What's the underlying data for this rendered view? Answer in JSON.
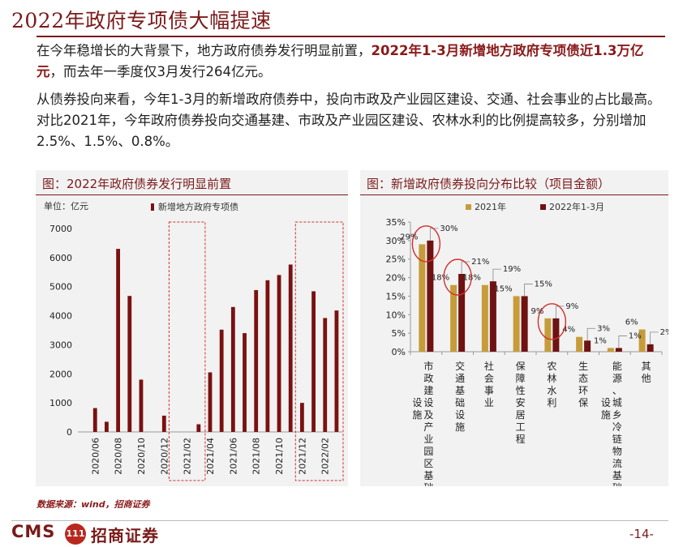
{
  "title": "2022年政府专项债大幅提速",
  "para1": {
    "pre": "在今年稳增长的大背景下，地方政府债券发行明显前置，",
    "bold": "2022年1-3月新增地方政府专项债近1.3万亿元",
    "post": "，而去年一季度仅3月发行264亿元。"
  },
  "para2": "从债券投向来看，今年1-3月的新增政府债券中，投向市政及产业园区建设、交通、社会事业的占比最高。对比2021年，今年政府债券投向交通基建、市政及产业园区建设、农林水利的比例提高较多，分别增加2.5%、1.5%、0.8%。",
  "colors": {
    "brand": "#7b1a1a",
    "bar_left": "#7a1111",
    "series_2021": "#c69c3a",
    "series_2022": "#6e1212",
    "highlight": "#d32f2f"
  },
  "chart_data": [
    {
      "type": "bar",
      "title": "图：2022年政府债券发行明显前置",
      "unit_label": "单位：亿元",
      "legend": "新增地方政府专项债",
      "ylim": [
        0,
        7000
      ],
      "yticks": [
        0,
        1000,
        2000,
        3000,
        4000,
        5000,
        6000,
        7000
      ],
      "xtick_labels": [
        "2020/06",
        "2020/08",
        "2020/10",
        "2020/12",
        "2021/02",
        "2021/04",
        "2021/06",
        "2021/08",
        "2021/10",
        "2021/12",
        "2022/02"
      ],
      "categories": [
        "2020/05",
        "2020/06",
        "2020/07",
        "2020/08",
        "2020/09",
        "2020/10",
        "2020/11",
        "2020/12",
        "2021/01",
        "2021/02",
        "2021/03",
        "2021/04",
        "2021/05",
        "2021/06",
        "2021/07",
        "2021/08",
        "2021/09",
        "2021/10",
        "2021/11",
        "2021/12",
        "2022/01",
        "2022/02",
        "2022/03"
      ],
      "values": [
        0,
        820,
        350,
        6300,
        4680,
        1800,
        0,
        560,
        0,
        0,
        264,
        2050,
        3520,
        4300,
        3400,
        4880,
        5220,
        5400,
        5760,
        1000,
        4840,
        3920,
        4180
      ],
      "highlight_ranges": [
        [
          8,
          10
        ],
        [
          19,
          22
        ]
      ]
    },
    {
      "type": "bar",
      "title": "图：新增政府债券投向分布比较（项目金额）",
      "categories": [
        "市政建设及产业园区基础设施",
        "交通基础设施",
        "社会事业",
        "保障性安居工程",
        "农林水利",
        "生态环保",
        "能源、城乡冷链物流基础设施",
        "其他"
      ],
      "series": [
        {
          "name": "2021年",
          "values": [
            29,
            18,
            18,
            15,
            9,
            4,
            1,
            6
          ]
        },
        {
          "name": "2022年1-3月",
          "values": [
            30,
            21,
            19,
            15,
            9,
            3,
            1,
            2
          ]
        }
      ],
      "label_2021": [
        "29%",
        "18%",
        "18%",
        "15%",
        "9%",
        "4%",
        "1%",
        "6%"
      ],
      "label_2022": [
        "30%",
        "21%",
        "19%",
        "15%",
        "9%",
        "3%",
        "1%",
        "2%"
      ],
      "ylim": [
        0,
        35
      ],
      "yticks": [
        "0%",
        "5%",
        "10%",
        "15%",
        "20%",
        "25%",
        "30%",
        "35%"
      ],
      "circled_categories": [
        0,
        1,
        4
      ]
    }
  ],
  "source": "数据来源：wind，招商证券",
  "logo_text": "CMS",
  "logo_mark": "111",
  "logo_cn": "招商证券",
  "page_number": "-14-"
}
